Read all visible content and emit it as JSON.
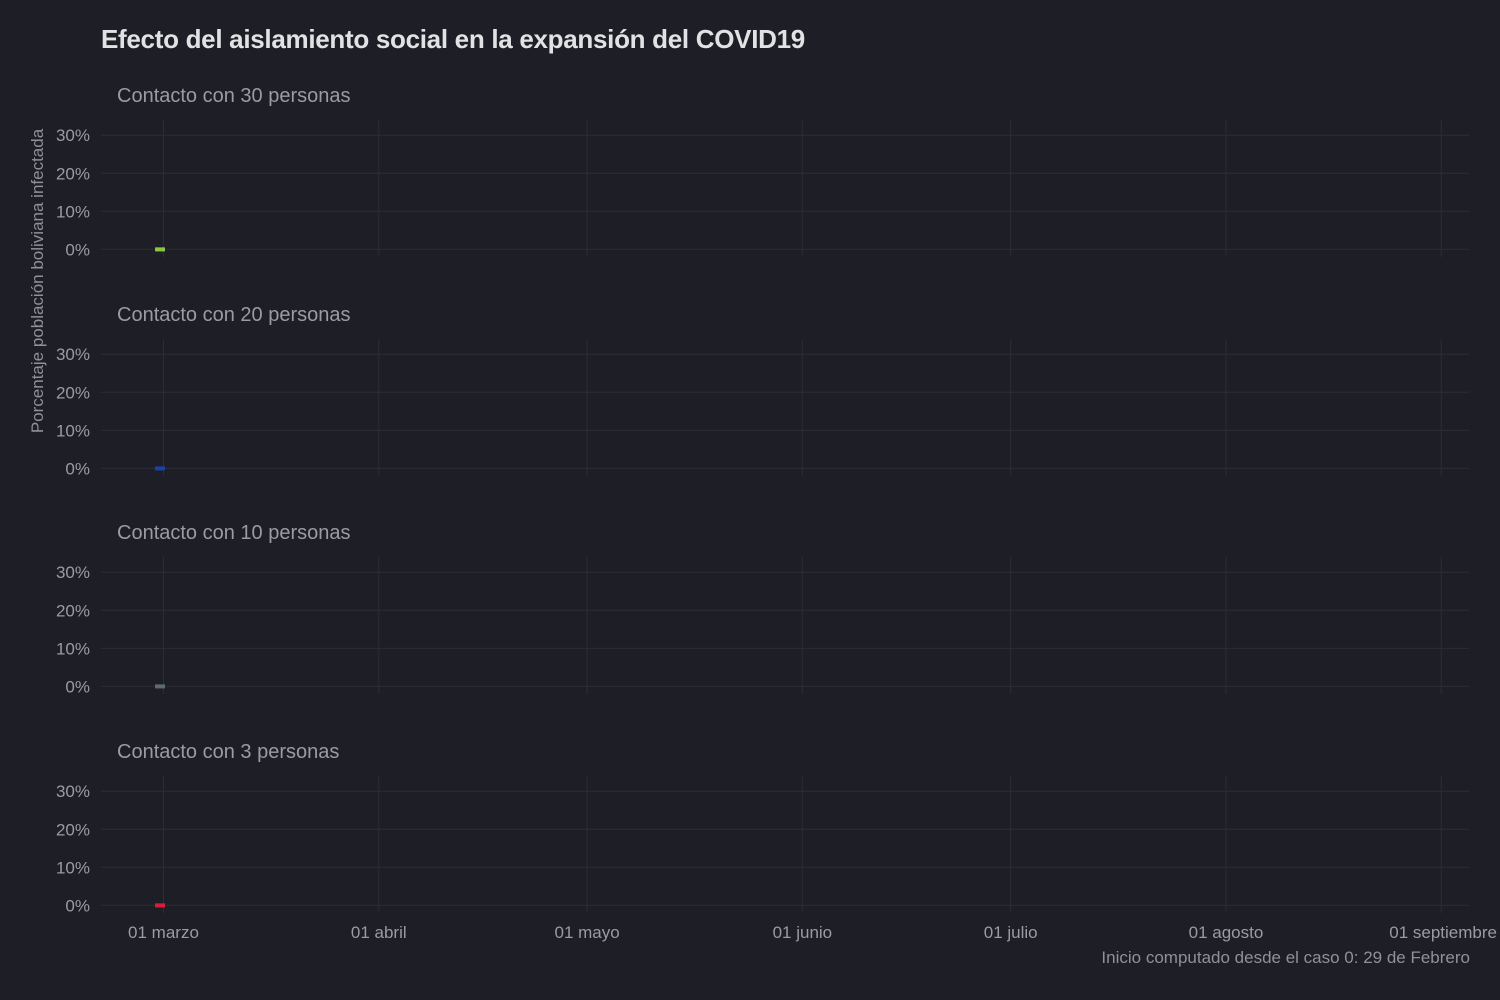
{
  "chart_data": {
    "type": "line",
    "title": "Efecto del aislamiento social en la expansión del COVID19",
    "ylabel": "Porcentaje población boliviana infectada",
    "xlabel": "",
    "caption": "Inicio computado desde el caso 0: 29 de Febrero",
    "x_ticks": [
      {
        "date": "2020-03-01",
        "label": "01 marzo"
      },
      {
        "date": "2020-04-01",
        "label": "01 abril"
      },
      {
        "date": "2020-05-01",
        "label": "01 mayo"
      },
      {
        "date": "2020-06-01",
        "label": "01 junio"
      },
      {
        "date": "2020-07-01",
        "label": "01 julio"
      },
      {
        "date": "2020-08-01",
        "label": "01 agosto"
      },
      {
        "date": "2020-09-01",
        "label": "01 septiembre"
      }
    ],
    "xlim": [
      "2020-02-21",
      "2020-09-05"
    ],
    "y_ticks": [
      {
        "value": 0,
        "label": "0%"
      },
      {
        "value": 10,
        "label": "10%"
      },
      {
        "value": 20,
        "label": "20%"
      },
      {
        "value": 30,
        "label": "30%"
      }
    ],
    "ylim": [
      -2,
      34
    ],
    "grid": true,
    "legend": "none",
    "panels": [
      {
        "title": "Contacto con 30 personas",
        "color": "#8dc63f",
        "x": [
          "2020-02-29",
          "2020-03-01"
        ],
        "values": [
          0,
          0
        ]
      },
      {
        "title": "Contacto con 20 personas",
        "color": "#1f3fa8",
        "x": [
          "2020-02-29",
          "2020-03-01"
        ],
        "values": [
          0,
          0
        ]
      },
      {
        "title": "Contacto con 10 personas",
        "color": "#5d6b70",
        "x": [
          "2020-02-29",
          "2020-03-01"
        ],
        "values": [
          0,
          0
        ]
      },
      {
        "title": "Contacto con 3 personas",
        "color": "#d81e3c",
        "x": [
          "2020-02-29",
          "2020-03-01"
        ],
        "values": [
          0,
          0
        ]
      }
    ]
  }
}
